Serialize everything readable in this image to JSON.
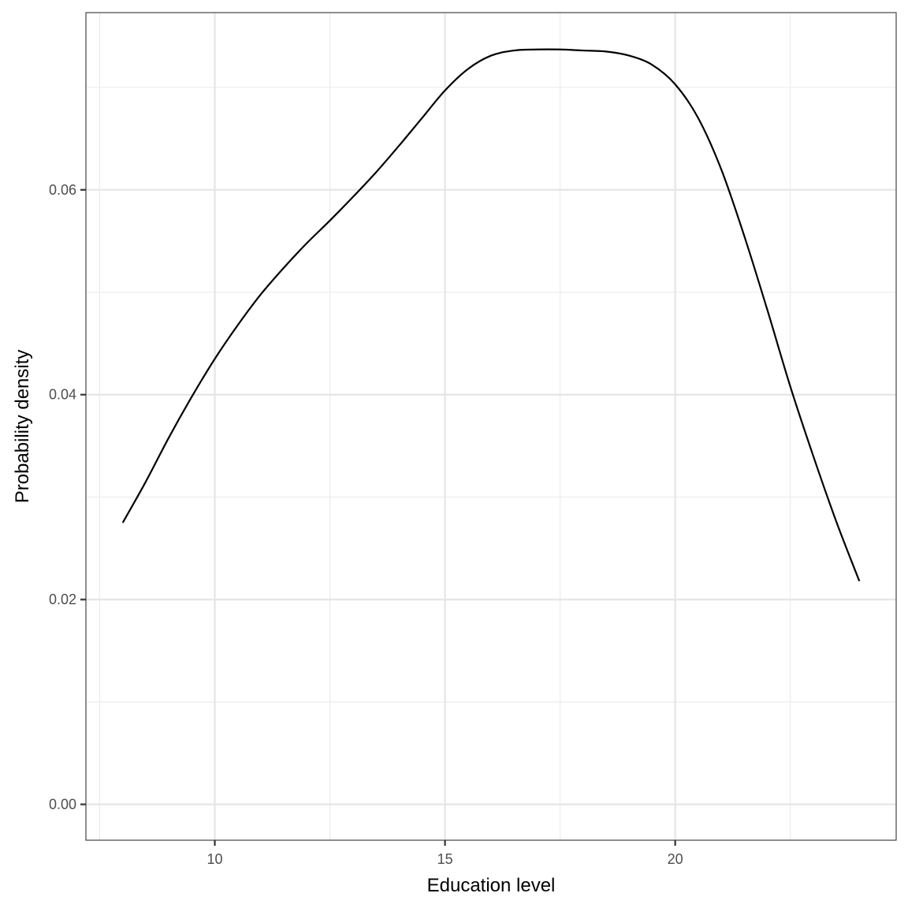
{
  "chart_data": {
    "type": "line",
    "subtype": "density",
    "title": "",
    "xlabel": "Education level",
    "ylabel": "Probability density",
    "xlim": [
      7.2,
      24.8
    ],
    "ylim": [
      -0.0035,
      0.0773
    ],
    "x_ticks": [
      10,
      15,
      20
    ],
    "x_tick_labels": [
      "10",
      "15",
      "20"
    ],
    "y_ticks": [
      0.0,
      0.02,
      0.04,
      0.06
    ],
    "y_tick_labels": [
      "0.00",
      "0.02",
      "0.04",
      "0.06"
    ],
    "grid": true,
    "legend": null,
    "series": [
      {
        "name": "density",
        "color": "#000000",
        "x": [
          8.0,
          8.5,
          9.0,
          9.5,
          10.0,
          10.5,
          11.0,
          11.5,
          12.0,
          12.5,
          13.0,
          13.5,
          14.0,
          14.5,
          15.0,
          15.5,
          16.0,
          16.5,
          17.0,
          17.5,
          18.0,
          18.5,
          19.0,
          19.5,
          20.0,
          20.5,
          21.0,
          21.5,
          22.0,
          22.5,
          23.0,
          23.5,
          24.0
        ],
        "y": [
          0.0275,
          0.0315,
          0.0358,
          0.0398,
          0.0435,
          0.0468,
          0.0498,
          0.0524,
          0.0548,
          0.057,
          0.0593,
          0.0617,
          0.0643,
          0.067,
          0.0697,
          0.0718,
          0.0731,
          0.0736,
          0.0737,
          0.0737,
          0.0736,
          0.0735,
          0.0731,
          0.0722,
          0.0703,
          0.067,
          0.062,
          0.0555,
          0.0483,
          0.0408,
          0.034,
          0.0276,
          0.0218
        ]
      }
    ]
  },
  "axes": {
    "x_title": "Education level",
    "y_title": "Probability density"
  }
}
